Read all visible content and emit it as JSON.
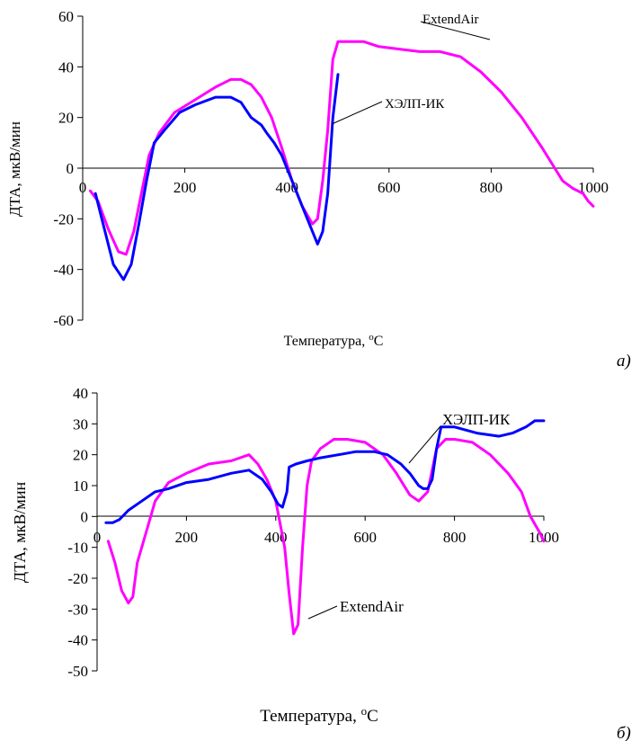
{
  "chart_data": [
    {
      "type": "line",
      "panel_label": "а)",
      "xlabel": "Температура, °С",
      "ylabel": "ДТА, мкВ/мин",
      "xlim": [
        0,
        1000
      ],
      "ylim": [
        -60,
        60
      ],
      "xticks": [
        0,
        200,
        400,
        600,
        800,
        1000
      ],
      "yticks": [
        60,
        40,
        20,
        0,
        -20,
        -40,
        -60
      ],
      "grid": false,
      "legend": "none",
      "series": [
        {
          "name": "ExtendAir",
          "color": "#ff00ff",
          "x": [
            15,
            30,
            50,
            70,
            85,
            100,
            115,
            130,
            150,
            180,
            220,
            260,
            290,
            310,
            330,
            350,
            370,
            390,
            410,
            430,
            450,
            460,
            470,
            480,
            490,
            500,
            520,
            550,
            580,
            620,
            660,
            700,
            740,
            780,
            820,
            860,
            900,
            940,
            960,
            980,
            990,
            1000
          ],
          "y": [
            -9,
            -13,
            -24,
            -33,
            -34,
            -25,
            -10,
            5,
            14,
            22,
            27,
            32,
            35,
            35,
            33,
            28,
            20,
            8,
            -5,
            -15,
            -22,
            -20,
            -5,
            15,
            43,
            50,
            50,
            50,
            48,
            47,
            46,
            46,
            44,
            38,
            30,
            20,
            8,
            -5,
            -8,
            -10,
            -13,
            -15
          ]
        },
        {
          "name": "ХЭЛП-ИК",
          "color": "#0000ff",
          "x": [
            25,
            40,
            60,
            80,
            95,
            110,
            125,
            140,
            160,
            190,
            220,
            260,
            290,
            310,
            330,
            350,
            360,
            375,
            390,
            410,
            430,
            450,
            460,
            470,
            480,
            490,
            500
          ],
          "y": [
            -10,
            -22,
            -38,
            -44,
            -38,
            -22,
            -5,
            10,
            15,
            22,
            25,
            28,
            28,
            26,
            20,
            17,
            14,
            10,
            5,
            -5,
            -15,
            -25,
            -30,
            -25,
            -10,
            20,
            37
          ]
        }
      ],
      "annotations": [
        "ExtendAir",
        "ХЭЛП-ИК"
      ]
    },
    {
      "type": "line",
      "panel_label": "б)",
      "xlabel": "Температура, °С",
      "ylabel": "ДТА, мкВ/мин",
      "xlim": [
        0,
        1000
      ],
      "ylim": [
        -50,
        40
      ],
      "xticks": [
        0,
        200,
        400,
        600,
        800,
        1000
      ],
      "yticks": [
        40,
        30,
        20,
        10,
        0,
        -10,
        -20,
        -30,
        -40,
        -50
      ],
      "grid": false,
      "legend": "none",
      "series": [
        {
          "name": "ExtendAir",
          "color": "#ff00ff",
          "x": [
            25,
            40,
            55,
            70,
            80,
            90,
            110,
            130,
            160,
            200,
            250,
            300,
            340,
            360,
            380,
            400,
            420,
            430,
            440,
            450,
            460,
            470,
            480,
            500,
            530,
            560,
            600,
            640,
            670,
            700,
            720,
            740,
            760,
            780,
            800,
            840,
            880,
            920,
            950,
            970,
            990,
            1000
          ],
          "y": [
            -8,
            -15,
            -24,
            -28,
            -26,
            -15,
            -5,
            5,
            11,
            14,
            17,
            18,
            20,
            17,
            12,
            5,
            -10,
            -25,
            -38,
            -35,
            -10,
            10,
            18,
            22,
            25,
            25,
            24,
            20,
            14,
            7,
            5,
            8,
            22,
            25,
            25,
            24,
            20,
            14,
            8,
            0,
            -5,
            -8
          ]
        },
        {
          "name": "ХЭЛП-ИК",
          "color": "#0000ff",
          "x": [
            20,
            35,
            50,
            70,
            100,
            130,
            160,
            200,
            250,
            300,
            340,
            370,
            390,
            405,
            415,
            425,
            430,
            445,
            470,
            500,
            540,
            580,
            620,
            650,
            680,
            700,
            720,
            730,
            740,
            750,
            760,
            770,
            800,
            850,
            900,
            930,
            960,
            980,
            1000
          ],
          "y": [
            -2,
            -2,
            -1,
            2,
            5,
            8,
            9,
            11,
            12,
            14,
            15,
            12,
            8,
            4,
            3,
            8,
            16,
            17,
            18,
            19,
            20,
            21,
            21,
            20,
            17,
            14,
            10,
            9,
            9,
            12,
            22,
            29,
            29,
            27,
            26,
            27,
            29,
            31,
            31
          ]
        }
      ],
      "annotations": [
        "ХЭЛП-ИК",
        "ExtendAir"
      ]
    }
  ]
}
